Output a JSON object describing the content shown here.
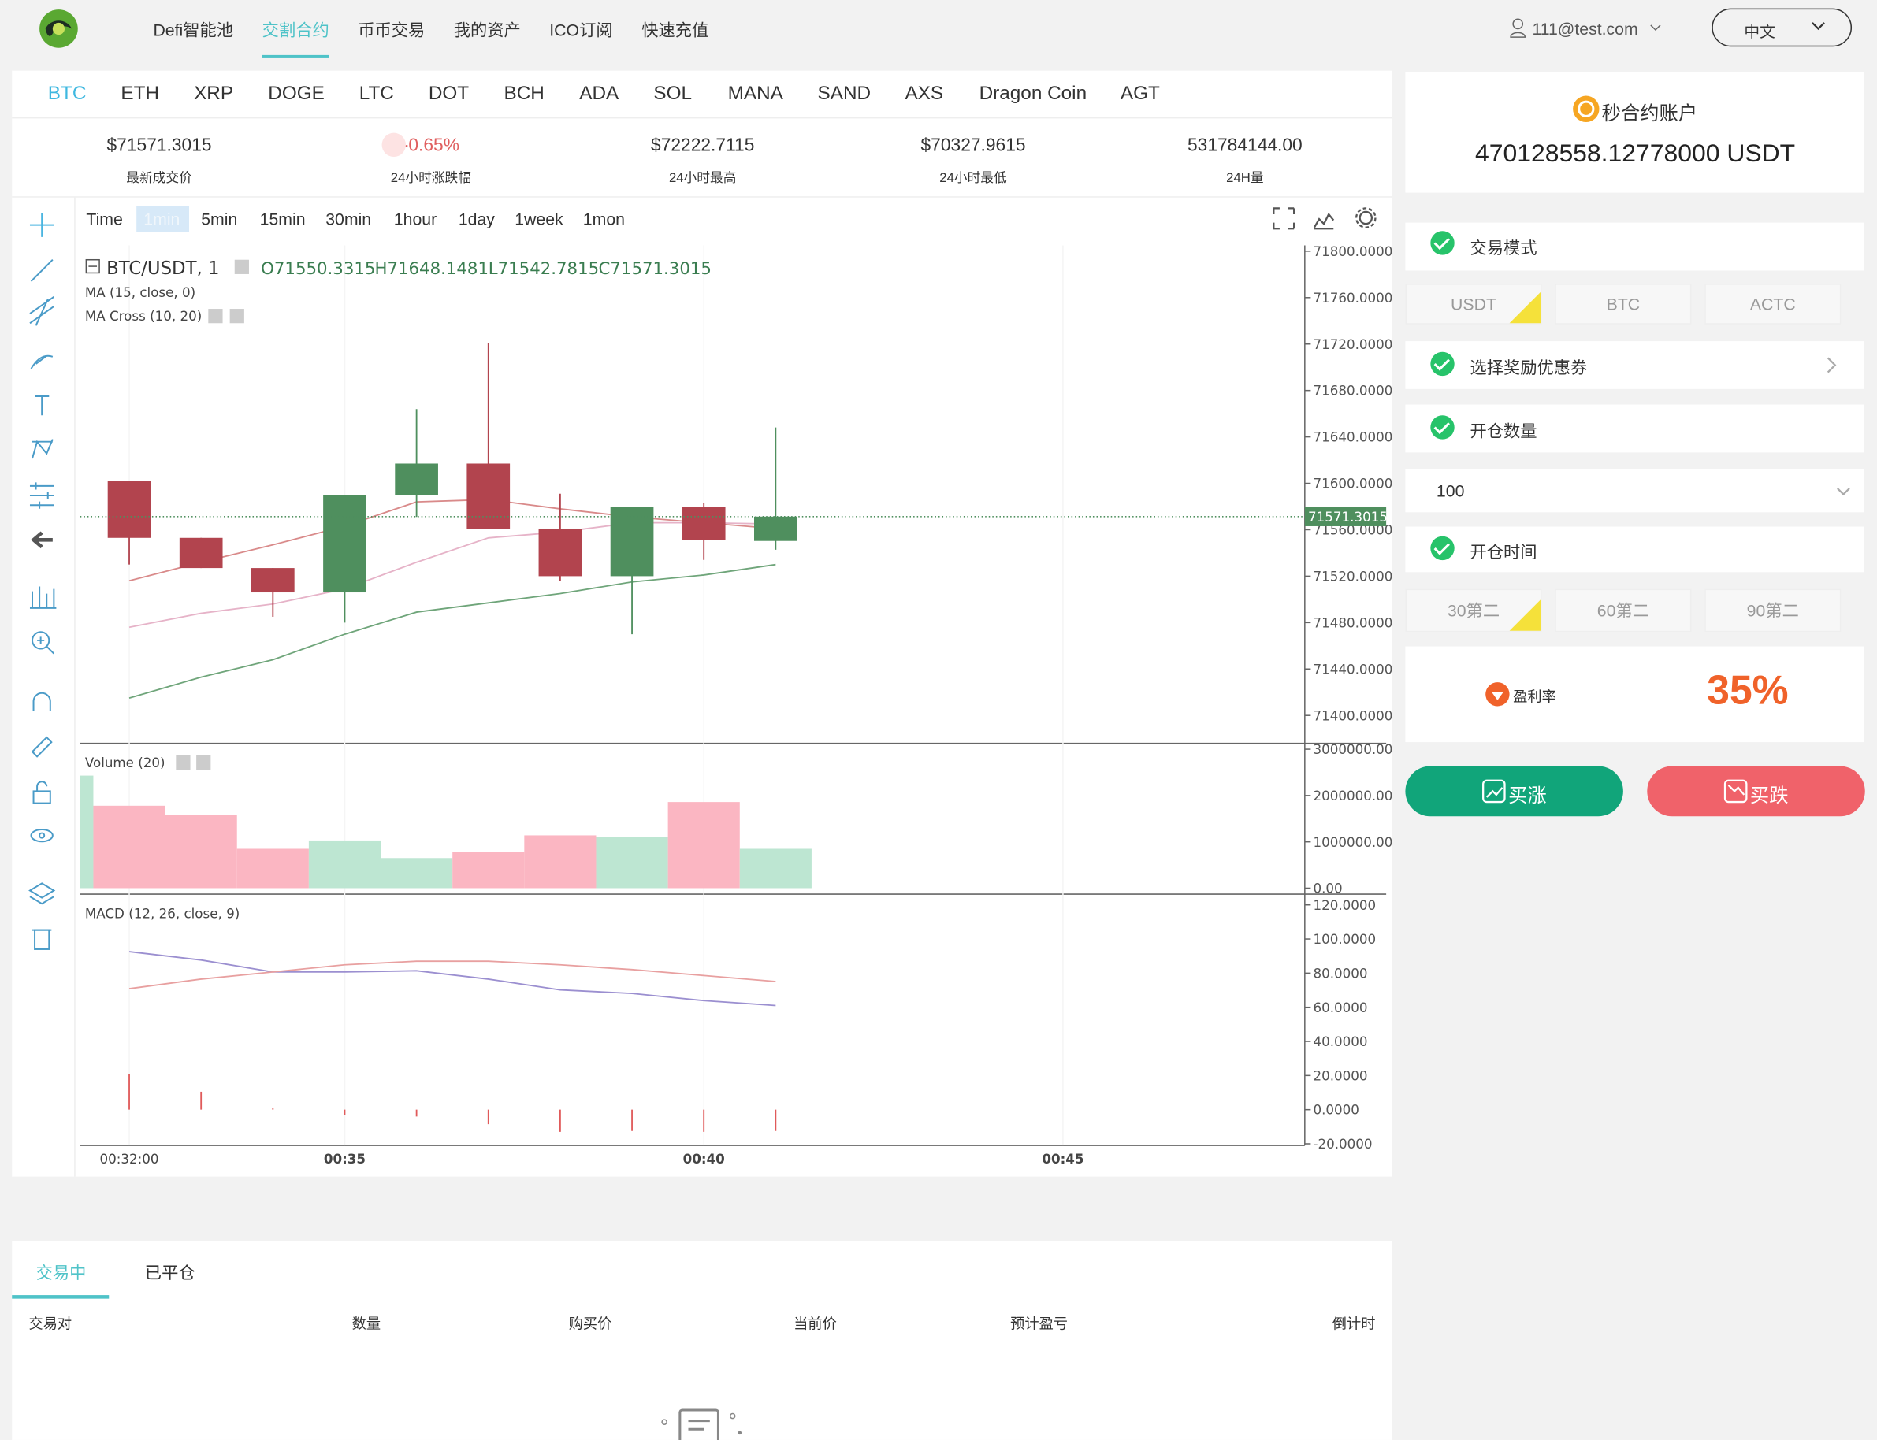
{
  "nav": {
    "items": [
      "Defi智能池",
      "交割合约",
      "币币交易",
      "我的资产",
      "ICO订阅",
      "快速充值"
    ],
    "user": "111@test.com",
    "language": "中文"
  },
  "coins": [
    "BTC",
    "ETH",
    "XRP",
    "DOGE",
    "LTC",
    "DOT",
    "BCH",
    "ADA",
    "SOL",
    "MANA",
    "SAND",
    "AXS",
    "Dragon Coin",
    "AGT"
  ],
  "ticker": [
    {
      "value": "$71571.3015",
      "label": "最新成交价"
    },
    {
      "value": "-0.65%",
      "label": "24小时涨跌幅"
    },
    {
      "value": "$72222.7115",
      "label": "24小时最高"
    },
    {
      "value": "$70327.9615",
      "label": "24小时最低"
    },
    {
      "value": "531784144.00",
      "label": "24H量"
    }
  ],
  "chart": {
    "intervals": [
      "Time",
      "1min",
      "5min",
      "15min",
      "30min",
      "1hour",
      "1day",
      "1week",
      "1mon"
    ],
    "symbol": "BTC/USDT, 1",
    "legend": [
      "O71550.3315",
      "H71648.1481",
      "L71542.7815",
      "C71571.3015"
    ],
    "indicators": [
      "MA (15, close, 0)",
      "MA Cross (10, 20)"
    ],
    "last_price": {
      "value": 71571.3015,
      "label": "71571.3015"
    },
    "xlim": [
      31.317,
      48.367
    ],
    "xticks": [
      {
        "value": 32,
        "label": "00:32:00"
      },
      {
        "value": 35,
        "label": "00:35"
      },
      {
        "value": 40,
        "label": "00:40"
      },
      {
        "value": 45,
        "label": "00:45"
      }
    ],
    "price": {
      "ylim": [
        71377,
        71805
      ],
      "yticks": [
        {
          "value": 71800,
          "label": "71800.0000"
        },
        {
          "value": 71760,
          "label": "71760.0000"
        },
        {
          "value": 71720,
          "label": "71720.0000"
        },
        {
          "value": 71680,
          "label": "71680.0000"
        },
        {
          "value": 71640,
          "label": "71640.0000"
        },
        {
          "value": 71600,
          "label": "71600.0000"
        },
        {
          "value": 71560,
          "label": "71560.0000"
        },
        {
          "value": 71520,
          "label": "71520.0000"
        },
        {
          "value": 71480,
          "label": "71480.0000"
        },
        {
          "value": 71440,
          "label": "71440.0000"
        },
        {
          "value": 71400,
          "label": "71400.0000"
        }
      ],
      "times": [
        32,
        33,
        34,
        35,
        36,
        37,
        38,
        39,
        40,
        41
      ],
      "open": [
        71602,
        71553,
        71527,
        71506,
        71590,
        71617,
        71561,
        71520,
        71580,
        71550.3315
      ],
      "high": [
        71602,
        71553,
        71527,
        71590,
        71664,
        71721,
        71591,
        71580,
        71583,
        71648.1481
      ],
      "low": [
        71530,
        71527,
        71485,
        71480,
        71571,
        71561,
        71516,
        71470,
        71534,
        71542.7815
      ],
      "close": [
        71553,
        71527,
        71506,
        71590,
        71617,
        71561,
        71520,
        71580,
        71551,
        71571.3015
      ],
      "lines": [
        {
          "color": "#e6b3c8",
          "values": [
            71476,
            71488,
            71496,
            71509,
            71532,
            71553,
            71558,
            71566,
            71566,
            71565
          ]
        },
        {
          "color": "#d98a8a",
          "values": [
            71516,
            71532,
            71547,
            71563,
            71584,
            71586,
            71578,
            71571,
            71566,
            71561
          ]
        },
        {
          "color": "#6fa57a",
          "values": [
            71415,
            71433,
            71448,
            71470,
            71489,
            71497,
            71505,
            71515,
            71521,
            71530
          ]
        }
      ]
    },
    "volume": {
      "title": "Volume (20)",
      "ylim": [
        -129000,
        3127000
      ],
      "yticks": [
        {
          "value": 3000000,
          "label": "3000000.00"
        },
        {
          "value": 2000000,
          "label": "2000000.00"
        },
        {
          "value": 1000000,
          "label": "1000000.00"
        },
        {
          "value": 0,
          "label": "0.00"
        }
      ],
      "times": [
        31,
        32,
        33,
        34,
        35,
        36,
        37,
        38,
        39,
        40,
        41
      ],
      "values": [
        2430000,
        1780000,
        1580000,
        850000,
        1030000,
        650000,
        780000,
        1140000,
        1110000,
        1860000,
        850000
      ],
      "colors": [
        "#bde6d2",
        "#fbb6c2",
        "#fbb6c2",
        "#fbb6c2",
        "#bde6d2",
        "#bde6d2",
        "#fbb6c2",
        "#fbb6c2",
        "#bde6d2",
        "#fbb6c2",
        "#bde6d2"
      ]
    },
    "macd": {
      "title": "MACD (12, 26, close, 9)",
      "ylim": [
        -21,
        125.6
      ],
      "yticks": [
        {
          "value": 120,
          "label": "120.0000"
        },
        {
          "value": 100,
          "label": "100.0000"
        },
        {
          "value": 80,
          "label": "80.0000"
        },
        {
          "value": 60,
          "label": "60.0000"
        },
        {
          "value": 40,
          "label": "40.0000"
        },
        {
          "value": 20,
          "label": "20.0000"
        },
        {
          "value": 0,
          "label": "0.0000"
        },
        {
          "value": -20,
          "label": "-20.0000"
        }
      ],
      "times": [
        32,
        33,
        34,
        35,
        36,
        37,
        38,
        39,
        40,
        41
      ],
      "histogram": [
        21,
        10.5,
        1,
        -3,
        -4,
        -8.5,
        -13,
        -12.5,
        -13,
        -12.5
      ],
      "lines": [
        {
          "color": "#9b8fd0",
          "values": [
            92.6,
            87.7,
            80.7,
            80.7,
            81.4,
            76.5,
            70.2,
            68.1,
            63.9,
            61
          ]
        },
        {
          "color": "#e8a0a0",
          "values": [
            70.9,
            76.5,
            80.7,
            84.9,
            87,
            87,
            84.9,
            82.1,
            78.6,
            75.1
          ]
        }
      ]
    }
  },
  "account": {
    "title": "秒合约账户",
    "balance": "470128558.12778000 USDT"
  },
  "form": {
    "mode_label": "交易模式",
    "currencies": [
      "USDT",
      "BTC",
      "ACTC"
    ],
    "coupon_label": "选择奖励优惠券",
    "amount_label": "开仓数量",
    "amount": 100,
    "time_label": "开仓时间",
    "durations": [
      "30第二",
      "60第二",
      "90第二"
    ],
    "rate_label": "盈利率",
    "rate": "35%",
    "buy_up": "买涨",
    "buy_down": "买跌"
  },
  "orders": {
    "tabs": [
      "交易中",
      "已平仓"
    ],
    "columns": [
      "交易对",
      "数量",
      "购买价",
      "当前价",
      "预计盈亏",
      "倒计时"
    ]
  }
}
